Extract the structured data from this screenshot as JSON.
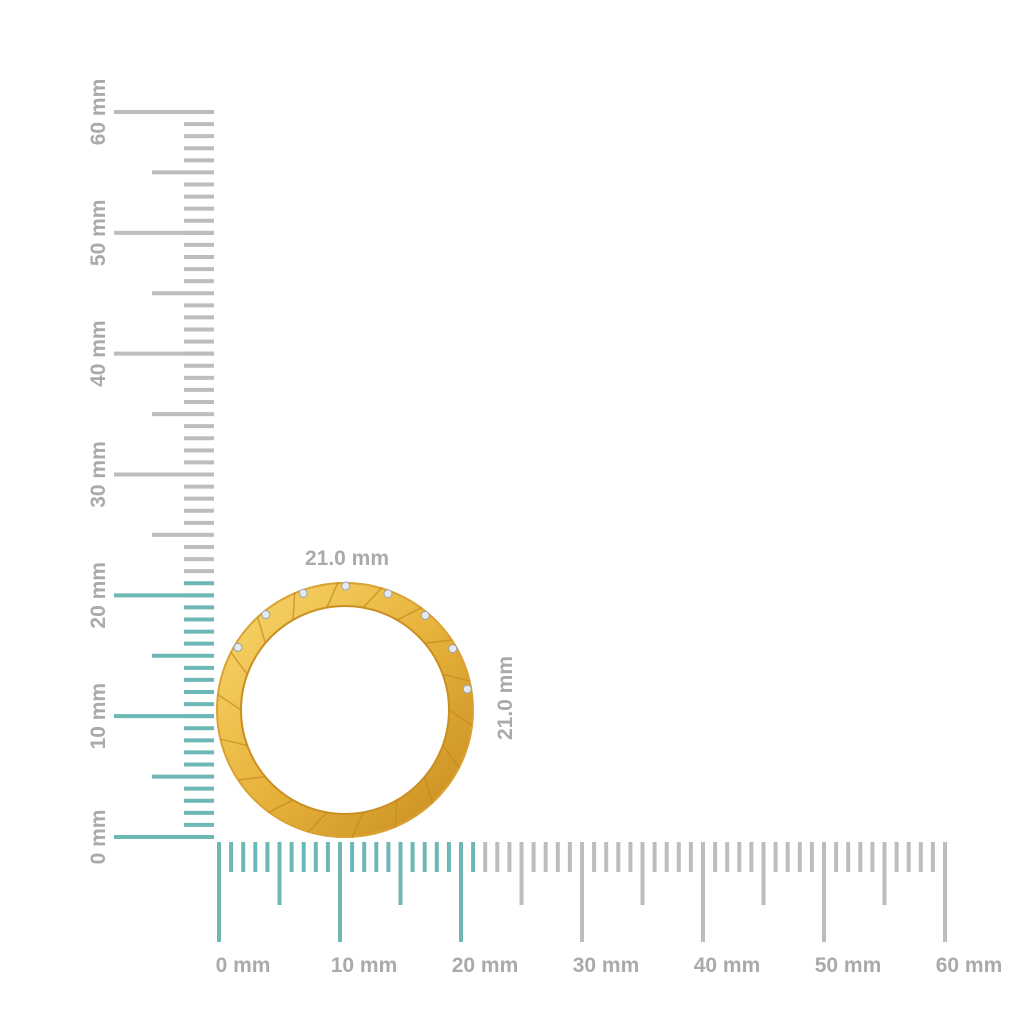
{
  "colors": {
    "highlight": "#6db8b4",
    "tick": "#bdbdbd",
    "label": "#aaaaaa",
    "gold": "#e8b33c",
    "gold_light": "#f6d56a",
    "gold_dark": "#c98f22"
  },
  "vertical_ruler": {
    "unit": "mm",
    "max": 60,
    "highlight_to": 21,
    "labels": [
      "0 mm",
      "10 mm",
      "20 mm",
      "30 mm",
      "40 mm",
      "50 mm",
      "60 mm"
    ]
  },
  "horizontal_ruler": {
    "unit": "mm",
    "max": 60,
    "highlight_to": 21,
    "labels": [
      "0 mm",
      "10 mm",
      "20 mm",
      "30 mm",
      "40 mm",
      "50 mm",
      "60 mm"
    ]
  },
  "dimensions": {
    "width": "21.0 mm",
    "height": "21.0 mm"
  },
  "product": {
    "icon": "gold-ring-with-diamonds"
  }
}
